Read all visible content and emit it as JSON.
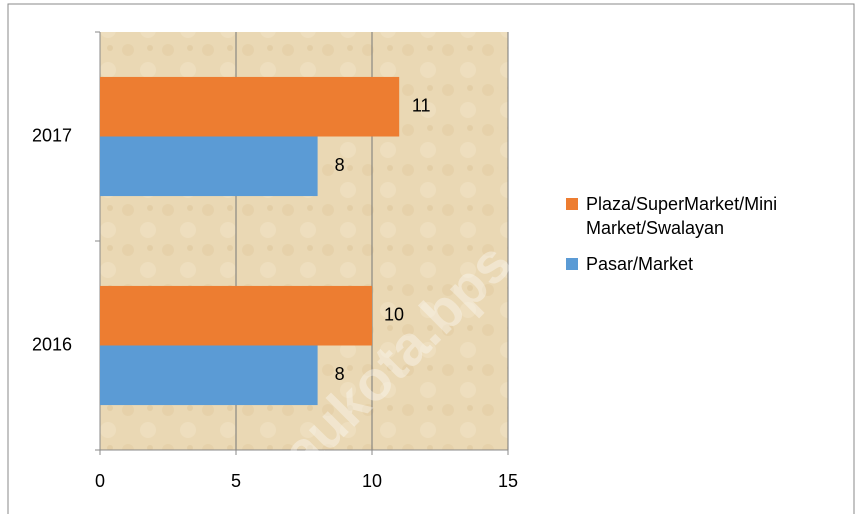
{
  "chart_data": {
    "type": "hbar",
    "categories": [
      "2016",
      "2017"
    ],
    "series": [
      {
        "name": "Pasar/Market",
        "color": "#5b9bd5",
        "values": [
          8,
          8
        ]
      },
      {
        "name": "Plaza/SuperMarket/Mini Market/Swalayan",
        "color": "#ed7d31",
        "values": [
          10,
          11
        ]
      }
    ],
    "xlim": [
      0,
      15
    ],
    "xticks": [
      0,
      5,
      10,
      15
    ],
    "grid": true,
    "watermark": "baukota.bps.go.id"
  }
}
